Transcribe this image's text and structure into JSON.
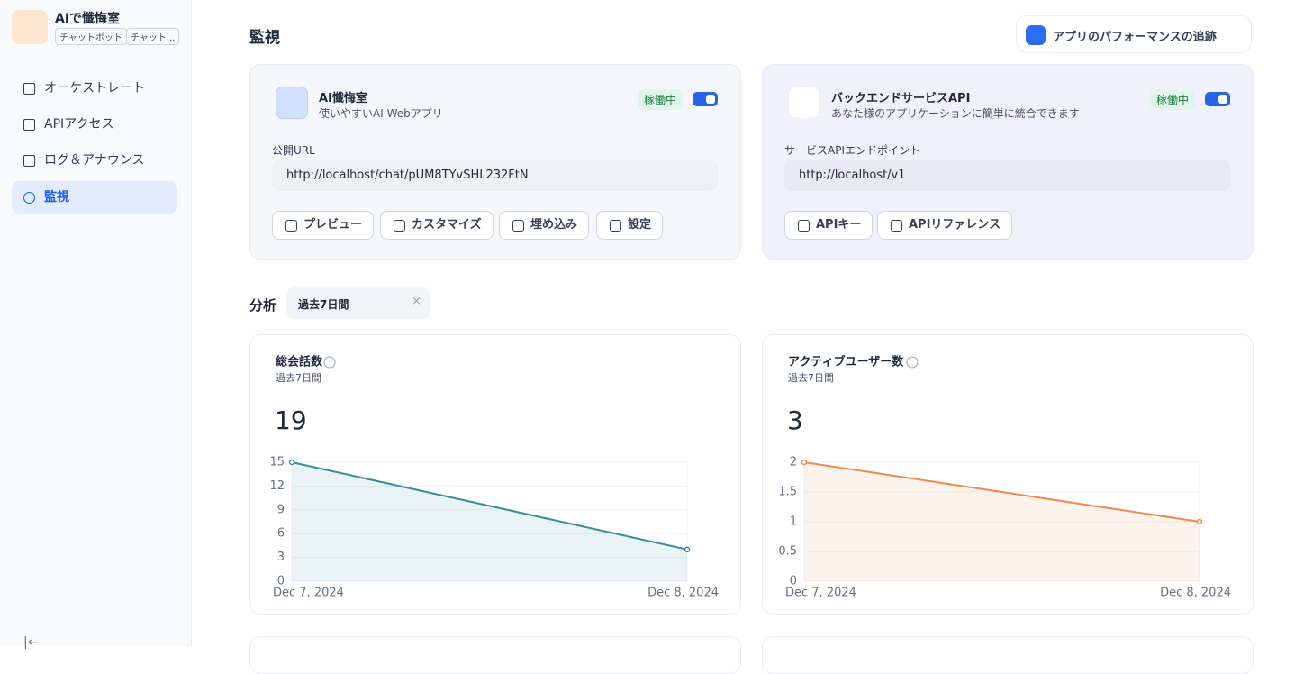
{
  "sidebar": {
    "app_name": "AIで懺悔室",
    "tags": [
      "チャットボット",
      "チャット..."
    ],
    "nav": [
      "オーケストレート",
      "APIアクセス",
      "ログ＆アナウンス",
      "監視"
    ]
  },
  "header": {
    "title": "監視",
    "tracing_button": "アプリのパフォーマンスの追跡"
  },
  "cards": [
    {
      "title": "AI懺悔室",
      "subtitle": "使いやすいAI Webアプリ",
      "status": "稼働中",
      "url_label": "公開URL",
      "url": "http://localhost/chat/pUM8TYvSHL232FtN",
      "buttons": [
        "プレビュー",
        "カスタマイズ",
        "埋め込み",
        "設定"
      ]
    },
    {
      "title": "バックエンドサービスAPI",
      "subtitle": "あなた様のアプリケーションに簡単に統合できます",
      "status": "稼働中",
      "url_label": "サービスAPIエンドポイント",
      "url": "http://localhost/v1",
      "buttons": [
        "APIキー",
        "APIリファレンス"
      ]
    }
  ],
  "analytics": {
    "title": "分析",
    "period": "過去7日間"
  },
  "charts": [
    {
      "type": "line",
      "title": "総会話数",
      "subtitle": "過去7日間",
      "total": "19",
      "x": [
        "Dec 7, 2024",
        "Dec 8, 2024"
      ],
      "values": [
        15,
        4
      ],
      "color": "#3a8f9a",
      "ylim": [
        0,
        15
      ],
      "yticks": [
        0,
        3,
        6,
        9,
        12,
        15
      ]
    },
    {
      "type": "line",
      "title": "アクティブユーザー数",
      "subtitle": "過去7日間",
      "total": "3",
      "x": [
        "Dec 7, 2024",
        "Dec 8, 2024"
      ],
      "values": [
        2,
        1
      ],
      "color": "#f08a4b",
      "ylim": [
        0,
        2
      ],
      "yticks": [
        0,
        0.5,
        1,
        1.5,
        2
      ]
    }
  ]
}
